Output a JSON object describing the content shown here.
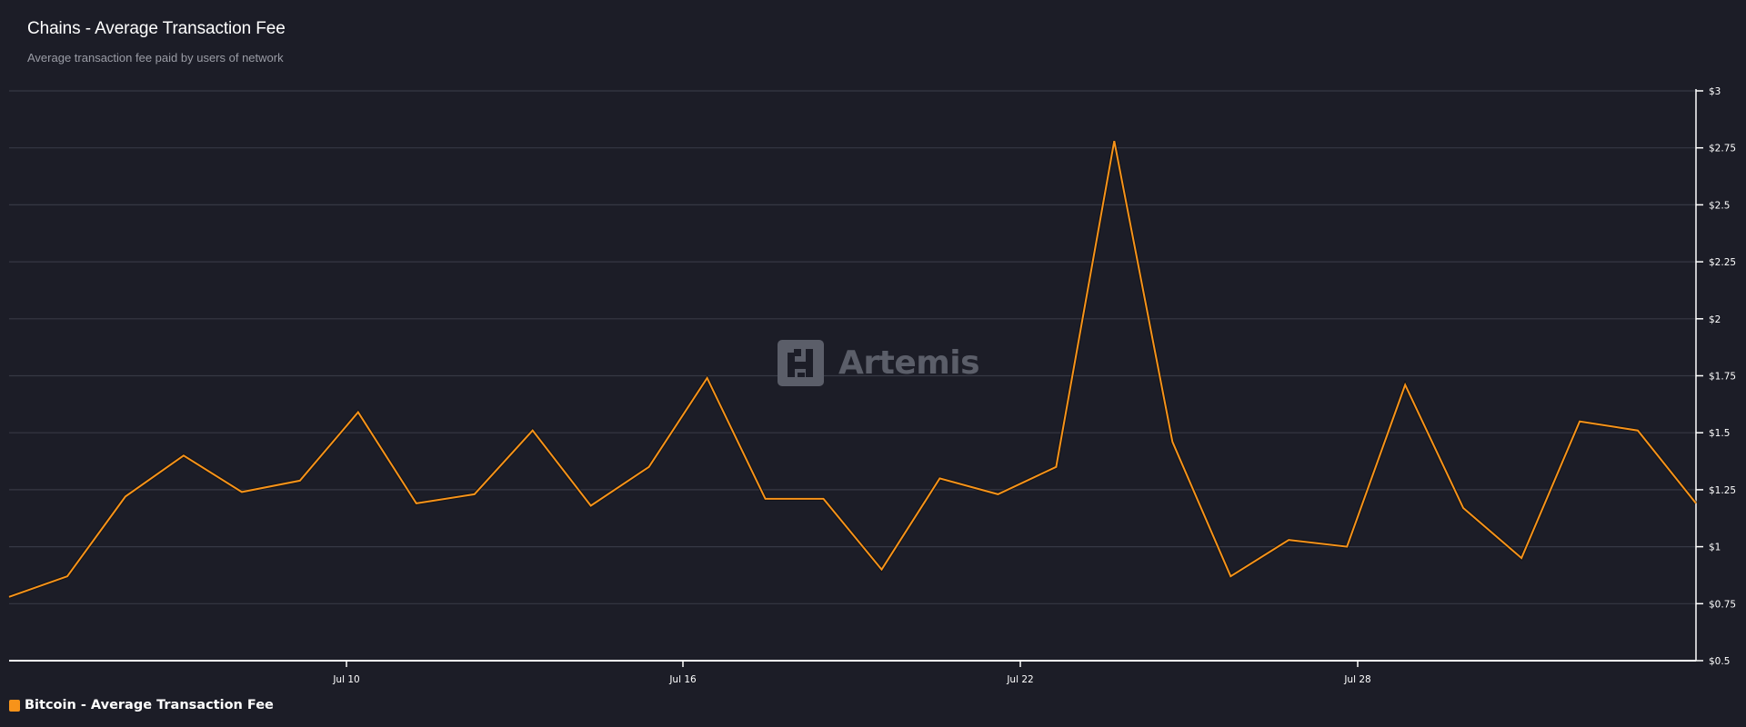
{
  "header": {
    "title": "Chains - Average Transaction Fee",
    "subtitle": "Average transaction fee paid by users of network"
  },
  "watermark": {
    "text": "Artemis",
    "icon": "artemis-logo-icon"
  },
  "legend": {
    "items": [
      {
        "label": "Bitcoin - Average Transaction Fee",
        "color": "#f7931a"
      }
    ]
  },
  "colors": {
    "background": "#1c1d27",
    "gridline": "#363844",
    "axis": "#ffffff",
    "series": "#f7931a",
    "watermark": "#5b5e69"
  },
  "chart_data": {
    "type": "line",
    "title": "Chains - Average Transaction Fee",
    "subtitle": "Average transaction fee paid by users of network",
    "xlabel": "",
    "ylabel": "",
    "x_tick_labels": [
      "Jul 10",
      "Jul 16",
      "Jul 22",
      "Jul 28"
    ],
    "y_tick_labels": [
      "$0.5",
      "$0.75",
      "$1",
      "$1.25",
      "$1.5",
      "$1.75",
      "$2",
      "$2.25",
      "$2.5",
      "$2.75",
      "$3"
    ],
    "y_ticks": [
      0.5,
      0.75,
      1,
      1.25,
      1.5,
      1.75,
      2,
      2.25,
      2.5,
      2.75,
      3
    ],
    "ylim": [
      0.5,
      3
    ],
    "grid": true,
    "y_axis_position": "right",
    "legend_position": "bottom-left",
    "x": [
      "Jul 4",
      "Jul 5",
      "Jul 6",
      "Jul 7",
      "Jul 8",
      "Jul 9",
      "Jul 10",
      "Jul 11",
      "Jul 12",
      "Jul 13",
      "Jul 14",
      "Jul 15",
      "Jul 16",
      "Jul 17",
      "Jul 18",
      "Jul 19",
      "Jul 20",
      "Jul 21",
      "Jul 22",
      "Jul 23",
      "Jul 24",
      "Jul 25",
      "Jul 26",
      "Jul 27",
      "Jul 28",
      "Jul 29",
      "Jul 30",
      "Jul 31",
      "Aug 1",
      "Aug 2"
    ],
    "series": [
      {
        "name": "Bitcoin - Average Transaction Fee",
        "color": "#f7931a",
        "values": [
          0.78,
          0.87,
          1.22,
          1.4,
          1.24,
          1.29,
          1.59,
          1.19,
          1.23,
          1.51,
          1.18,
          1.35,
          1.74,
          1.21,
          1.21,
          0.9,
          1.3,
          1.23,
          1.35,
          2.78,
          1.46,
          0.87,
          1.03,
          1.0,
          1.71,
          1.17,
          0.95,
          1.55,
          1.51,
          1.19
        ]
      }
    ]
  }
}
